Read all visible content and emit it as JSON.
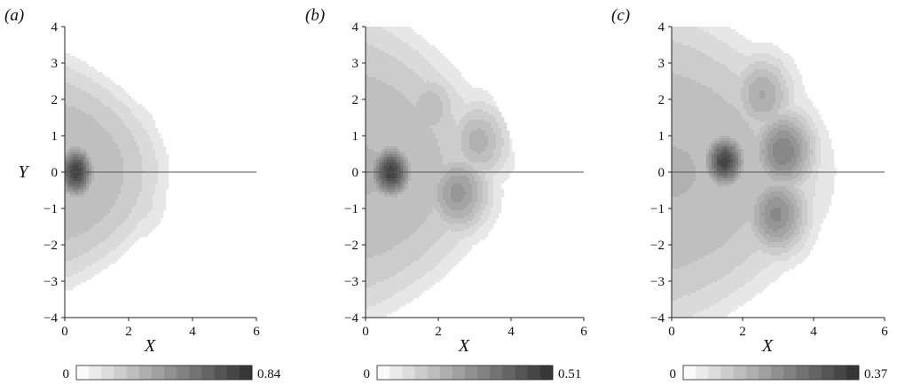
{
  "chart_data": [
    {
      "type": "heatmap",
      "panel_label": "(a)",
      "xlabel": "X",
      "ylabel": "Y",
      "xlim": [
        0,
        6
      ],
      "ylim": [
        -4,
        4
      ],
      "x_ticks": [
        "0",
        "2",
        "4",
        "6"
      ],
      "y_ticks": [
        "4",
        "3",
        "2",
        "1",
        "0",
        "−1",
        "−2",
        "−3",
        "−4"
      ],
      "colorbar": {
        "min_label": "0",
        "max_label": "0.84",
        "min": 0,
        "max": 0.84,
        "levels": 14
      },
      "reference_line_y": 0,
      "field": {
        "extent_right": 3.4,
        "extent_top": 2.8,
        "extent_bottom": -2.8,
        "peaks": [
          {
            "x": 0.35,
            "y": 0.0,
            "value": 0.84
          },
          {
            "x": 1.2,
            "y": 0.1,
            "value": 0.22
          },
          {
            "x": 2.4,
            "y": -0.8,
            "value": 0.2
          },
          {
            "x": 2.2,
            "y": 1.1,
            "value": 0.16
          }
        ]
      }
    },
    {
      "type": "heatmap",
      "panel_label": "(b)",
      "xlabel": "X",
      "ylabel": "",
      "xlim": [
        0,
        6
      ],
      "ylim": [
        -4,
        4
      ],
      "x_ticks": [
        "0",
        "2",
        "4",
        "6"
      ],
      "y_ticks": [
        "4",
        "3",
        "2",
        "1",
        "0",
        "−1",
        "−2",
        "−3",
        "−4"
      ],
      "colorbar": {
        "min_label": "0",
        "max_label": "0.51",
        "min": 0,
        "max": 0.51,
        "levels": 14
      },
      "reference_line_y": 0,
      "field": {
        "extent_right": 3.9,
        "extent_top": 4.0,
        "extent_bottom": -3.6,
        "peaks": [
          {
            "x": 0.7,
            "y": 0.0,
            "value": 0.51
          },
          {
            "x": 2.6,
            "y": -0.6,
            "value": 0.32
          },
          {
            "x": 3.2,
            "y": 0.9,
            "value": 0.27
          },
          {
            "x": 1.8,
            "y": 1.8,
            "value": 0.2
          }
        ]
      }
    },
    {
      "type": "heatmap",
      "panel_label": "(c)",
      "xlabel": "X",
      "ylabel": "",
      "xlim": [
        0,
        6
      ],
      "ylim": [
        -4,
        4
      ],
      "x_ticks": [
        "0",
        "2",
        "4",
        "6"
      ],
      "y_ticks": [
        "4",
        "3",
        "2",
        "1",
        "0",
        "−1",
        "−2",
        "−3",
        "−4"
      ],
      "colorbar": {
        "min_label": "0",
        "max_label": "0.37",
        "min": 0,
        "max": 0.37,
        "levels": 14
      },
      "reference_line_y": 0,
      "field": {
        "extent_right": 4.8,
        "extent_top": 4.1,
        "extent_bottom": -4.0,
        "peaks": [
          {
            "x": 1.5,
            "y": 0.3,
            "value": 0.37
          },
          {
            "x": 3.2,
            "y": 0.6,
            "value": 0.28
          },
          {
            "x": 3.0,
            "y": -1.2,
            "value": 0.26
          },
          {
            "x": 2.6,
            "y": 2.2,
            "value": 0.2
          }
        ]
      }
    }
  ]
}
